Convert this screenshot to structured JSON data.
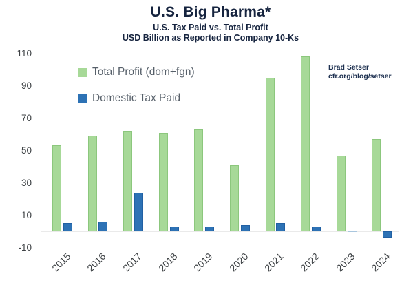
{
  "header": {
    "title": "U.S. Big Pharma*",
    "subtitle1": "U.S. Tax Paid vs. Total Profit",
    "subtitle2": "USD Billion as Reported in Company 10-Ks"
  },
  "attribution": {
    "line1": "Brad Setser",
    "line2": "cfr.org/blog/setser"
  },
  "legend": {
    "items": [
      {
        "label": "Total Profit (dom+fgn)",
        "color": "#a7d998"
      },
      {
        "label": "Domestic Tax Paid",
        "color": "#2d72b5"
      }
    ]
  },
  "chart_data": {
    "type": "bar",
    "title": "U.S. Big Pharma*",
    "subtitle_lines": [
      "U.S. Tax Paid vs. Total Profit",
      "USD Billion as Reported in Company 10-Ks"
    ],
    "xlabel": "",
    "ylabel": "USD Billion",
    "categories": [
      "2015",
      "2016",
      "2017",
      "2018",
      "2019",
      "2020",
      "2021",
      "2022",
      "2023",
      "2024"
    ],
    "series": [
      {
        "name": "Total Profit (dom+fgn)",
        "color": "#a7d998",
        "border_color": "#8cc77d",
        "values": [
          53,
          59,
          62,
          61,
          63,
          41,
          95,
          108,
          47,
          57
        ]
      },
      {
        "name": "Domestic Tax Paid",
        "color": "#2d72b5",
        "border_color": "#2160a3",
        "values": [
          5,
          6,
          24,
          3,
          3,
          4,
          5,
          3,
          0,
          -4
        ]
      }
    ],
    "ylim": [
      -10,
      110
    ],
    "yticks": [
      110,
      90,
      70,
      50,
      30,
      10,
      -10
    ],
    "grid": false,
    "legend_position": "top-left",
    "baseline_color": "#eaeaea",
    "axis_label_color": "#3e4245"
  }
}
